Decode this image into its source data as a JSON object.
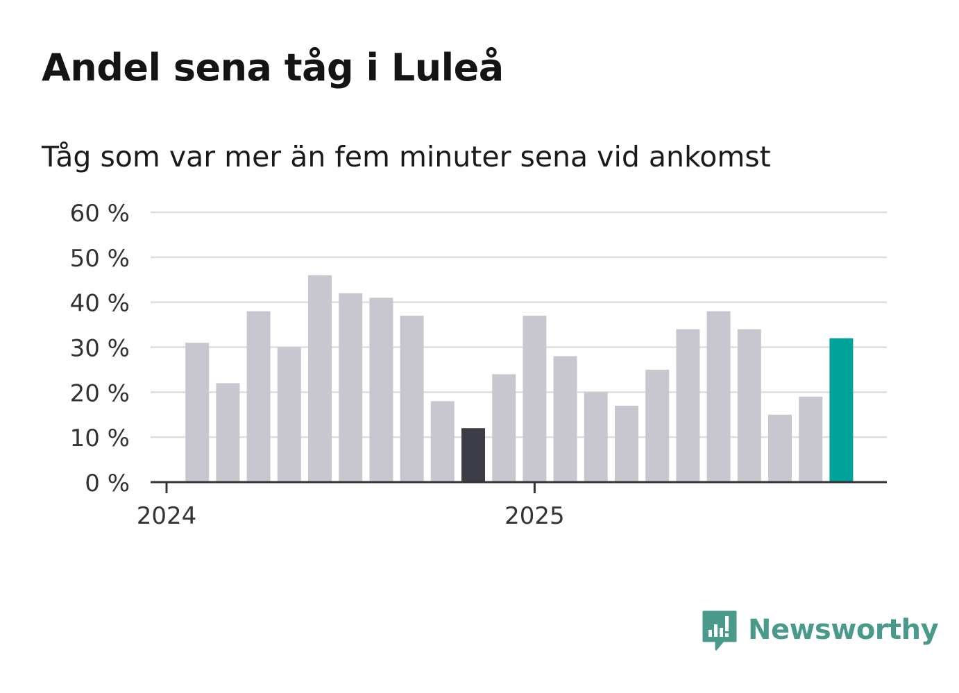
{
  "title": "Andel sena tåg i Luleå",
  "subtitle": "Tåg som var mer än fem minuter sena vid ankomst",
  "brand": {
    "name": "Newsworthy",
    "icon": "newsworthy-logo-icon"
  },
  "colors": {
    "bar_default": "#c8c7d0",
    "bar_low": "#3d3d47",
    "bar_latest": "#00a39a",
    "grid": "#dddddd",
    "axis": "#333333",
    "brand": "#4a9a8c"
  },
  "chart_data": {
    "type": "bar",
    "title": "Andel sena tåg i Luleå",
    "subtitle": "Tåg som var mer än fem minuter sena vid ankomst",
    "xlabel": "",
    "ylabel": "",
    "ylim": [
      0,
      60
    ],
    "yticks": [
      0,
      10,
      20,
      30,
      40,
      50,
      60
    ],
    "ytick_labels": [
      "0 %",
      "10 %",
      "20 %",
      "30 %",
      "40 %",
      "50 %",
      "60 %"
    ],
    "xtick_labels": [
      {
        "label": "2024",
        "category_index": 0
      },
      {
        "label": "2025",
        "category_index": 12
      }
    ],
    "grid": true,
    "categories": [
      "2024-01",
      "2024-02",
      "2024-03",
      "2024-04",
      "2024-05",
      "2024-06",
      "2024-07",
      "2024-08",
      "2024-09",
      "2024-10",
      "2024-11",
      "2024-12",
      "2025-01",
      "2025-02",
      "2025-03",
      "2025-04",
      "2025-05",
      "2025-06",
      "2025-07",
      "2025-08",
      "2025-09",
      "2025-10",
      "2025-11",
      "2025-12"
    ],
    "values": [
      null,
      31,
      22,
      38,
      30,
      46,
      42,
      41,
      37,
      18,
      12,
      24,
      37,
      28,
      20,
      17,
      25,
      34,
      38,
      34,
      15,
      19,
      32,
      null
    ],
    "highlights": {
      "low": 10,
      "latest": 22
    }
  }
}
